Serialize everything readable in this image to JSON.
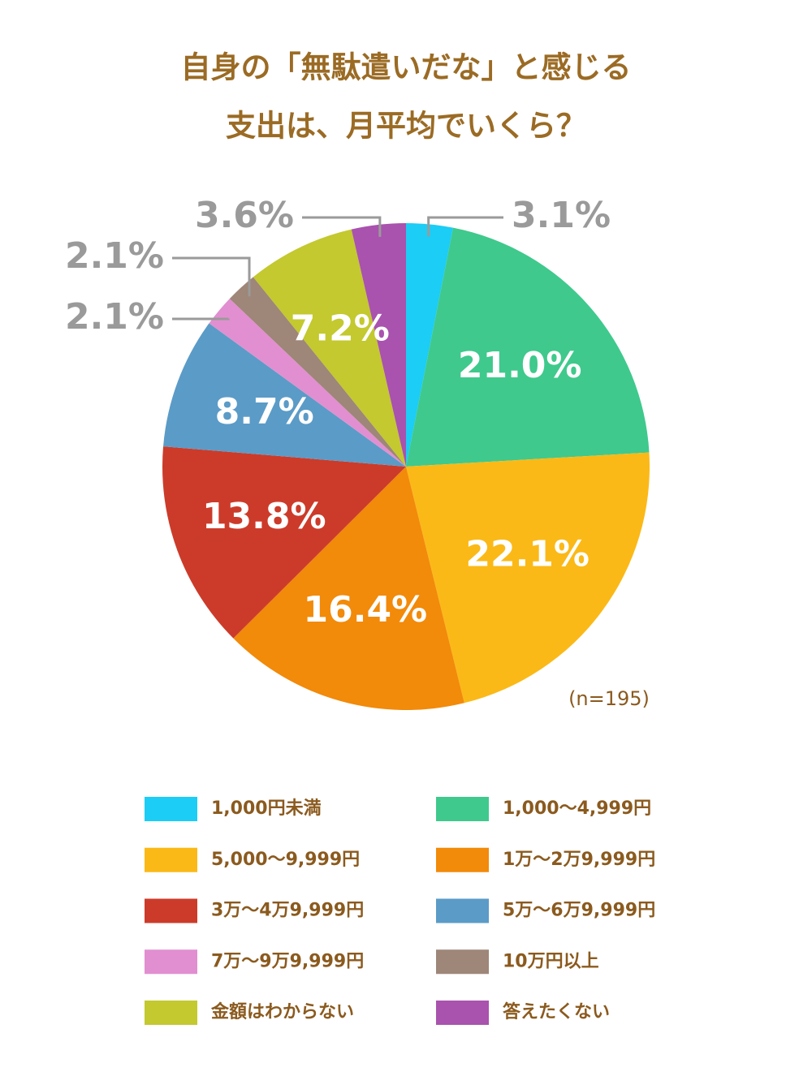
{
  "chart_data": {
    "type": "pie",
    "title": [
      "自身の「無駄遣いだな」と感じる",
      "支出は、月平均でいくら？"
    ],
    "note": "(n=195)",
    "categories": [
      "1,000円未満",
      "1,000〜4,999円",
      "5,000〜9,999円",
      "1万〜2万9,999円",
      "3万〜4万9,999円",
      "5万〜6万9,999円",
      "7万〜9万9,999円",
      "10万円以上",
      "金額はわからない",
      "答えたくない"
    ],
    "values": [
      3.1,
      21.0,
      22.1,
      16.4,
      13.8,
      8.7,
      2.1,
      2.1,
      7.2,
      3.6
    ],
    "value_labels": [
      "3.1%",
      "21.0%",
      "22.1%",
      "16.4%",
      "13.8%",
      "8.7%",
      "2.1%",
      "2.1%",
      "7.2%",
      "3.6%"
    ],
    "colors": [
      "#1ccdf5",
      "#3fc98d",
      "#fbb917",
      "#f28a0a",
      "#cc3b2a",
      "#5b9bc7",
      "#e18fd0",
      "#9e8678",
      "#c3c92e",
      "#a952ae"
    ]
  }
}
